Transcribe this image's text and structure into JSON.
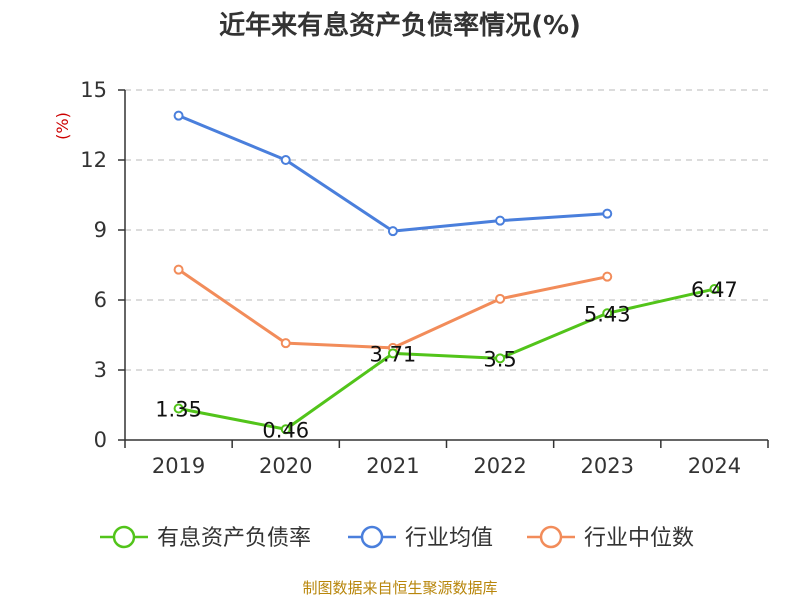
{
  "chart_data": {
    "type": "line",
    "title": "近年来有息资产负债率情况(%)",
    "unit_label": "(%)",
    "categories": [
      "2019",
      "2020",
      "2021",
      "2022",
      "2023",
      "2024"
    ],
    "ylim": [
      0,
      15
    ],
    "yticks": [
      "0",
      "3",
      "6",
      "9",
      "12",
      "15"
    ],
    "grid": true,
    "legend_position": "bottom",
    "series": [
      {
        "name": "有息资产负债率",
        "color": "#52c41a",
        "values": [
          1.35,
          0.46,
          3.71,
          3.5,
          5.43,
          6.47
        ],
        "labels": [
          "1.35",
          "0.46",
          "3.71",
          "3.5",
          "5.43",
          "6.47"
        ]
      },
      {
        "name": "行业均值",
        "color": "#4a7fdc",
        "values": [
          13.9,
          12.0,
          8.95,
          9.4,
          9.7,
          null
        ]
      },
      {
        "name": "行业中位数",
        "color": "#f28c5a",
        "values": [
          7.3,
          4.15,
          3.95,
          6.05,
          7.0,
          null
        ]
      }
    ],
    "source": "制图数据来自恒生聚源数据库"
  }
}
